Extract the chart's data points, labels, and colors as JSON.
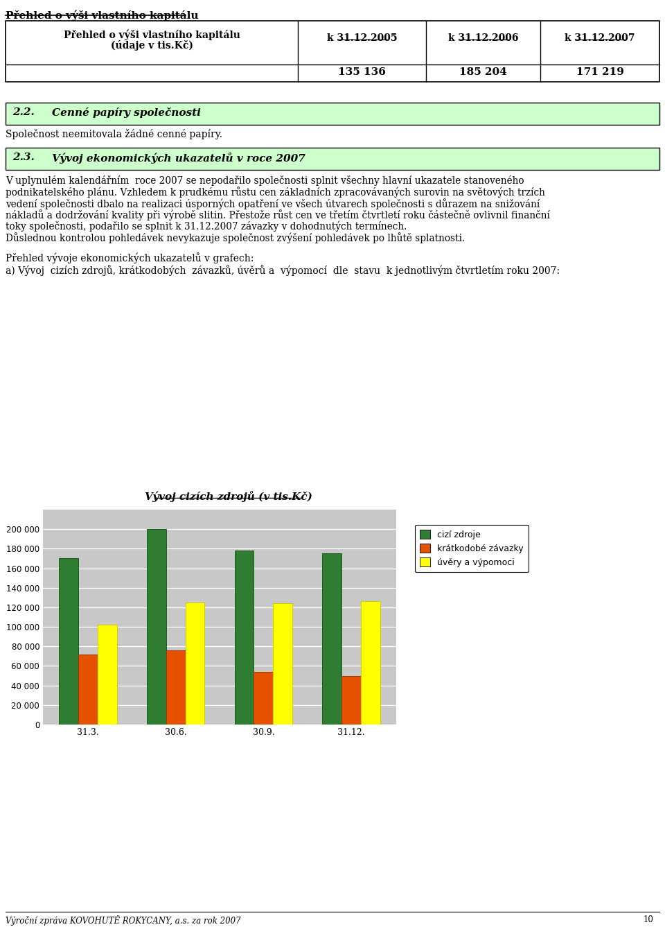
{
  "page_title": "Přehled o výši vlastního kapitálu",
  "table_header_col1a": "Přehled o výši vlastního kapitálu",
  "table_header_col1b": "(údaje v tis.Kč)",
  "table_col2": "k 31.12.2005",
  "table_col3": "k 31.12.2006",
  "table_col4": "k 31.12.2007",
  "table_val2": "135 136",
  "table_val3": "185 204",
  "table_val4": "171 219",
  "section22_num": "2.2.",
  "section22_title": "Cenné papíry společnosti",
  "section22_body": "Společnost neemitovala žádné cenné papíry.",
  "section23_num": "2.3.",
  "section23_title": "Vývoj ekonomických ukazatelů v roce 2007",
  "section23_body": "V uplynulém kalendářním  roce 2007 se nepodařilo společnosti splnit všechny hlavní ukazatele stanoveného\npodnikatelského plánu. Vzhledem k prudkému růstu cen základních zpracovávaných surovin na světových trzích\nvedení společnosti dbalo na realizaci úsporných opatření ve všech útvarech společnosti s důrazem na snižování\nnákladů a dodržování kvality při výrobě slitin. Přestože růst cen ve třetím čtvrtletí roku částečně ovlivnil finanční\ntoky společnosti, podařilo se splnit k 31.12.2007 závazky v dohodnutých termínech.\nDůslednou kontrolou pohledávek nevykazuje společnost zvýšení pohledávek po lhůtě splatnosti.",
  "pre_chart_text1": "Přehled vývoje ekonomických ukazatelů v grafech:",
  "pre_chart_text2": "a) Vývoj  cizích zdrojů, krátkodobých  závazků, úvěrů a  výpomocí  dle  stavu  k jednotlivým čtvrtletím roku 2007:",
  "chart_title": "Vývoj cizích zdrojů (v tis.Kč)",
  "chart_categories": [
    "31.3.",
    "30.6.",
    "30.9.",
    "31.12."
  ],
  "series_cizi_zdroje": [
    170000,
    200000,
    178000,
    175000
  ],
  "series_kratkodobe": [
    72000,
    76000,
    54000,
    50000
  ],
  "series_uvery": [
    102000,
    125000,
    124000,
    126000
  ],
  "color_cizi": "#2E7D32",
  "color_kratkodobe": "#E65100",
  "color_uvery": "#FFFF00",
  "legend_cizi": "cizí zdroje",
  "legend_kratkodobe": "krátkodobé závazky",
  "legend_uvery": "úvěry a výpomoci",
  "ymax": 220000,
  "yticks": [
    0,
    20000,
    40000,
    60000,
    80000,
    100000,
    120000,
    140000,
    160000,
    180000,
    200000
  ],
  "footer_text": "Výroční zpráva KOVOHUTĚ ROKYCANY, a.s. za rok 2007",
  "footer_page": "10",
  "section_bg_color": "#CCFFCC",
  "chart_plot_bg": "#C8C8C8"
}
